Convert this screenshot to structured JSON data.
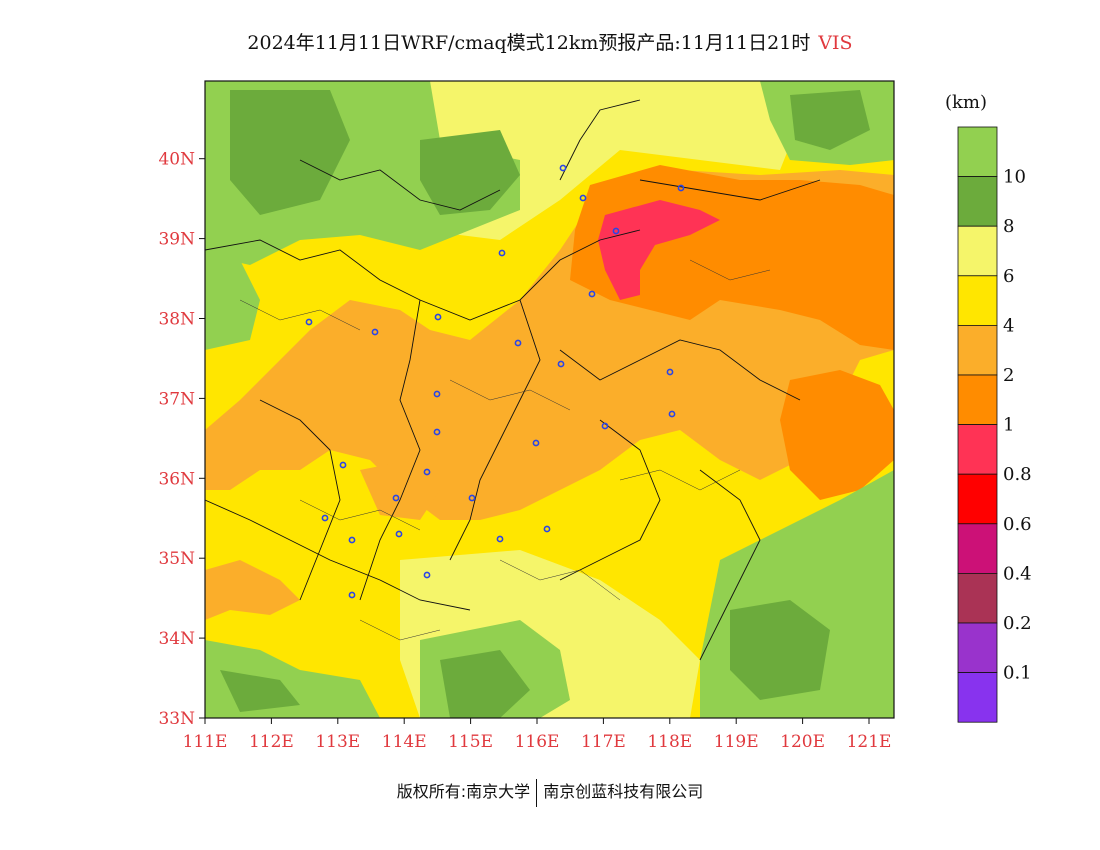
{
  "title": {
    "main": "2024年11月11日WRF/cmaq模式12km预报产品:11月11日21时",
    "variable": "VIS"
  },
  "axes": {
    "lat_labels": [
      "33N",
      "34N",
      "35N",
      "36N",
      "37N",
      "38N",
      "39N",
      "40N"
    ],
    "lon_labels": [
      "111E",
      "112E",
      "113E",
      "114E",
      "115E",
      "116E",
      "117E",
      "118E",
      "119E",
      "120E",
      "121E"
    ]
  },
  "colorbar": {
    "unit": "(km)",
    "labels": [
      "10",
      "8",
      "6",
      "4",
      "2",
      "1",
      "0.8",
      "0.6",
      "0.4",
      "0.2",
      "0.1"
    ],
    "colors": [
      "#92d050",
      "#6cab3c",
      "#f5f56a",
      "#ffe600",
      "#fbae2a",
      "#ff8c00",
      "#ff3355",
      "#ff0000",
      "#cc1177",
      "#aa3355",
      "#9933cc",
      "#8833ee"
    ]
  },
  "footer": {
    "left": "版权所有:南京大学",
    "right": "南京创蓝科技有限公司"
  }
}
